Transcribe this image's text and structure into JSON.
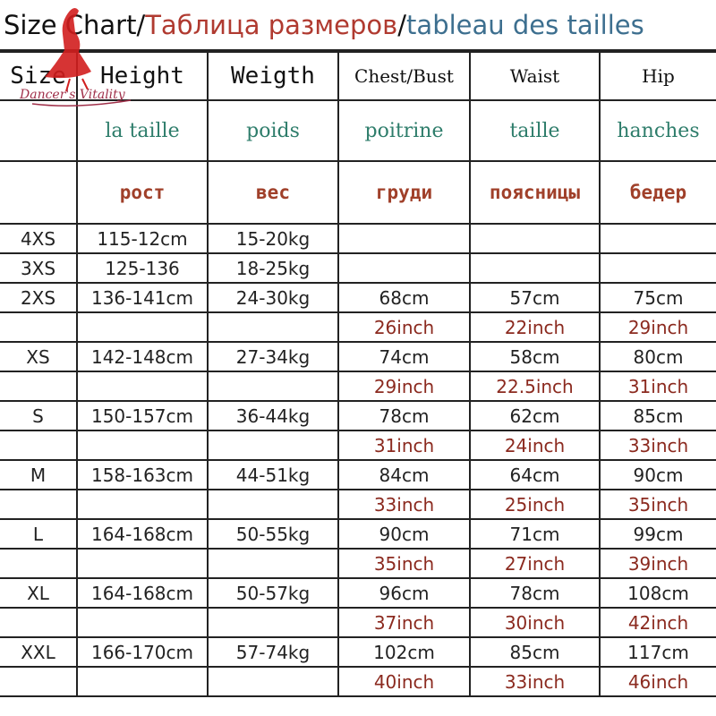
{
  "title": {
    "en": "Size Chart/",
    "ru": "Таблица размеров",
    "sep": "/",
    "fr": "tableau des tailles"
  },
  "logo": {
    "text": "Dancer's Vitality"
  },
  "headers": {
    "en": [
      "Size",
      "Height",
      "Weigth",
      "Chest/Bust",
      "Waist",
      "Hip"
    ],
    "fr": [
      "",
      "la taille",
      "poids",
      "poitrine",
      "taille",
      "hanches"
    ],
    "ru": [
      "",
      "рост",
      "вес",
      "груди",
      "поясницы",
      "бедер"
    ]
  },
  "rows": [
    [
      "4XS",
      "115-12cm",
      "15-20kg",
      "",
      "",
      ""
    ],
    [
      "3XS",
      "125-136",
      "18-25kg",
      "",
      "",
      ""
    ],
    [
      "2XS",
      "136-141cm",
      "24-30kg",
      "68cm",
      "57cm",
      "75cm"
    ],
    [
      "",
      "",
      "",
      "26inch",
      "22inch",
      "29inch"
    ],
    [
      "XS",
      "142-148cm",
      "27-34kg",
      "74cm",
      "58cm",
      "80cm"
    ],
    [
      "",
      "",
      "",
      "29inch",
      "22.5inch",
      "31inch"
    ],
    [
      "S",
      "150-157cm",
      "36-44kg",
      "78cm",
      "62cm",
      "85cm"
    ],
    [
      "",
      "",
      "",
      "31inch",
      "24inch",
      "33inch"
    ],
    [
      "M",
      "158-163cm",
      "44-51kg",
      "84cm",
      "64cm",
      "90cm"
    ],
    [
      "",
      "",
      "",
      "33inch",
      "25inch",
      "35inch"
    ],
    [
      "L",
      "164-168cm",
      "50-55kg",
      "90cm",
      "71cm",
      "99cm"
    ],
    [
      "",
      "",
      "",
      "35inch",
      "27inch",
      "39inch"
    ],
    [
      "XL",
      "164-168cm",
      "50-57kg",
      "96cm",
      "78cm",
      "108cm"
    ],
    [
      "",
      "",
      "",
      "37inch",
      "30inch",
      "42inch"
    ],
    [
      "XXL",
      "166-170cm",
      "57-74kg",
      "102cm",
      "85cm",
      "117cm"
    ],
    [
      "",
      "",
      "",
      "40inch",
      "33inch",
      "46inch"
    ]
  ]
}
